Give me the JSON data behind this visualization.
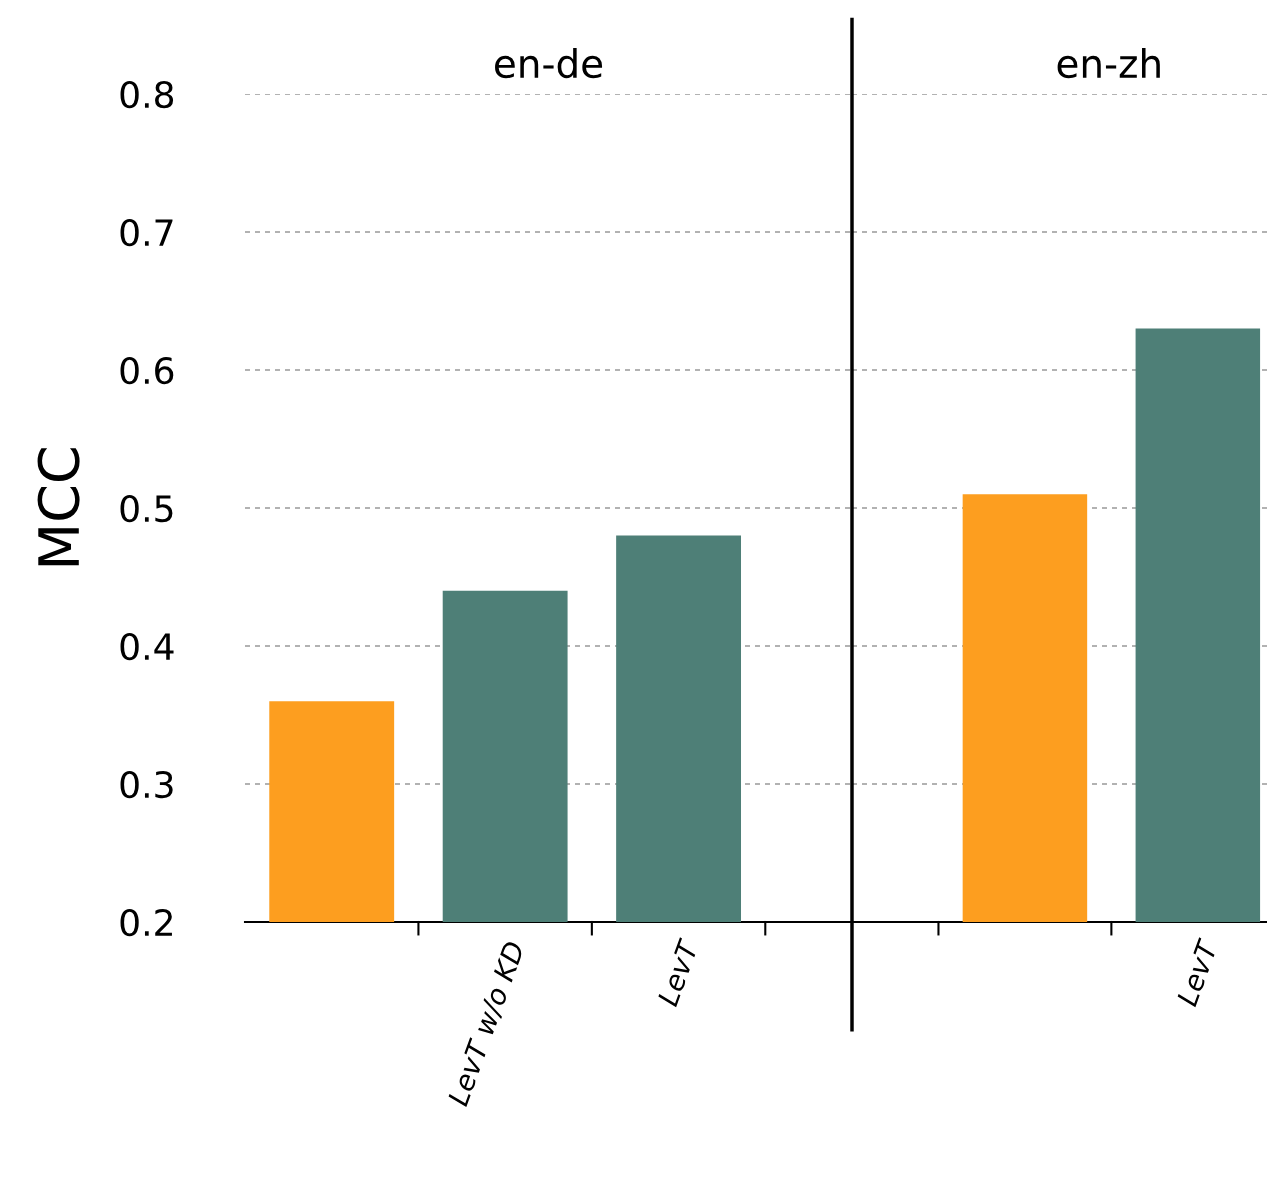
{
  "chart_data": [
    {
      "type": "bar",
      "annotations": [
        "en-de"
      ],
      "ylabel": "MCC",
      "categories": [
        null,
        "LevT w/o KD",
        "LevT"
      ],
      "values": [
        0.36,
        0.44,
        0.48
      ],
      "colors": [
        "#fd9e1f",
        "#4e7f77",
        "#4e7f77"
      ],
      "ylim": [
        0.2,
        0.8
      ],
      "yticks": [
        0.2,
        0.3,
        0.4,
        0.5,
        0.6,
        0.7,
        0.8
      ],
      "grid": "y"
    },
    {
      "type": "bar",
      "annotations": [
        "en-zh"
      ],
      "categories": [
        null,
        "LevT"
      ],
      "values": [
        0.51,
        0.63
      ],
      "colors": [
        "#fd9e1f",
        "#4e7f77"
      ],
      "ylim": [
        0.2,
        0.8
      ],
      "yticks": [
        0.2,
        0.3,
        0.4,
        0.5,
        0.6,
        0.7,
        0.8
      ],
      "grid": "y",
      "tick_labels": "x"
    }
  ]
}
